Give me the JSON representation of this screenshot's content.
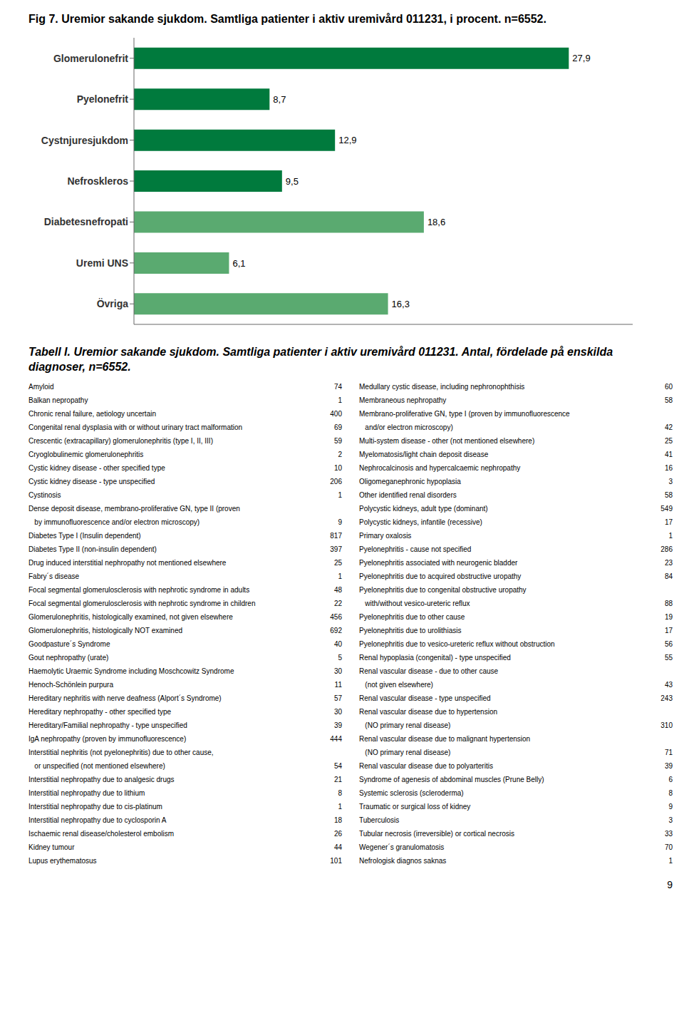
{
  "chart_data": {
    "type": "bar",
    "orientation": "horizontal",
    "title": "Fig 7. Uremior sakande sjukdom. Samtliga patienter i aktiv uremivård 011231, i procent. n=6552.",
    "categories": [
      "Glomerulonefrit",
      "Pyelonefrit",
      "Cystnjuresjukdom",
      "Nefroskleros",
      "Diabetesnefropati",
      "Uremi UNS",
      "Övriga"
    ],
    "values": [
      27.9,
      8.7,
      12.9,
      9.5,
      18.6,
      6.1,
      16.3
    ],
    "value_labels": [
      "27,9",
      "8,7",
      "12,9",
      "9,5",
      "18,6",
      "6,1",
      "16,3"
    ],
    "colors": [
      "#007a3d",
      "#007a3d",
      "#007a3d",
      "#007a3d",
      "#5aaa70",
      "#5aaa70",
      "#5aaa70"
    ],
    "data_labels": true,
    "xlim": [
      0,
      32
    ],
    "tick_labels": "y",
    "grid": false,
    "annotations": [
      "9"
    ],
    "table": {
      "title": "Tabell I. Uremior sakande sjukdom. Samtliga patienter i aktiv uremivård 011231. Antal, fördelade på enskilda diagnoser, n=6552.",
      "columns": [
        [
          {
            "label": "Amyloid",
            "value": 74
          },
          {
            "label": "Balkan nepropathy",
            "value": 1
          },
          {
            "label": "Chronic renal failure, aetiology uncertain",
            "value": 400
          },
          {
            "label": "Congenital renal dysplasia with or without urinary tract malformation",
            "value": 69
          },
          {
            "label": "Crescentic (extracapillary) glomerulonephritis (type I, II, III)",
            "value": 59
          },
          {
            "label": "Cryoglobulinemic glomerulonephritis",
            "value": 2
          },
          {
            "label": "Cystic kidney disease - other specified type",
            "value": 10
          },
          {
            "label": "Cystic kidney disease - type unspecified",
            "value": 206
          },
          {
            "label": "Cystinosis",
            "value": 1
          },
          {
            "label": "Dense deposit disease, membrano-proliferative GN, type II (proven"
          },
          {
            "label": "   by immunofluorescence and/or electron microscopy)",
            "value": 9
          },
          {
            "label": "Diabetes Type I (Insulin dependent)",
            "value": 817
          },
          {
            "label": "Diabetes Type II (non-insulin dependent)",
            "value": 397
          },
          {
            "label": "Drug induced interstitial nephropathy not mentioned elsewhere",
            "value": 25
          },
          {
            "label": "Fabry´s disease",
            "value": 1
          },
          {
            "label": "Focal segmental glomerulosclerosis with nephrotic syndrome in adults",
            "value": 48
          },
          {
            "label": "Focal segmental glomerulosclerosis with nephrotic syndrome in children",
            "value": 22
          },
          {
            "label": "Glomerulonephritis, histologically examined, not given elsewhere",
            "value": 456
          },
          {
            "label": "Glomerulonephritis, histologically NOT examined",
            "value": 692
          },
          {
            "label": "Goodpasture´s Syndrome",
            "value": 40
          },
          {
            "label": "Gout nephropathy (urate)",
            "value": 5
          },
          {
            "label": "Haemolytic Uraemic Syndrome including Moschcowitz Syndrome",
            "value": 30
          },
          {
            "label": "Henoch-Schönlein purpura",
            "value": 11
          },
          {
            "label": "Hereditary nephritis with nerve deafness (Alport´s Syndrome)",
            "value": 57
          },
          {
            "label": "Hereditary nephropathy - other specified type",
            "value": 30
          },
          {
            "label": "Hereditary/Familial nephropathy - type unspecified",
            "value": 39
          },
          {
            "label": "IgA nephropathy (proven by immunofluorescence)",
            "value": 444
          },
          {
            "label": "Interstitial nephritis (not pyelonephritis) due to other cause,"
          },
          {
            "label": "   or unspecified (not mentioned elsewhere)",
            "value": 54
          },
          {
            "label": "Interstitial nephropathy due to analgesic drugs",
            "value": 21
          },
          {
            "label": "Interstitial nephropathy due to lithium",
            "value": 8
          },
          {
            "label": "Interstitial nephropathy due to cis-platinum",
            "value": 1
          },
          {
            "label": "Interstitial nephropathy due to cyclosporin A",
            "value": 18
          },
          {
            "label": "Ischaemic renal disease/cholesterol embolism",
            "value": 26
          },
          {
            "label": "Kidney tumour",
            "value": 44
          },
          {
            "label": "Lupus erythematosus",
            "value": 101
          }
        ],
        [
          {
            "label": "Medullary cystic disease, including nephronophthisis",
            "value": 60
          },
          {
            "label": "Membraneous nephropathy",
            "value": 58
          },
          {
            "label": "Membrano-proliferative GN, type I (proven by immunofluorescence"
          },
          {
            "label": "   and/or electron microscopy)",
            "value": 42
          },
          {
            "label": "Multi-system disease - other (not mentioned elsewhere)",
            "value": 25
          },
          {
            "label": "Myelomatosis/light chain deposit disease",
            "value": 41
          },
          {
            "label": "Nephrocalcinosis and hypercalcaemic nephropathy",
            "value": 16
          },
          {
            "label": "Oligomeganephronic hypoplasia",
            "value": 3
          },
          {
            "label": "Other identified renal disorders",
            "value": 58
          },
          {
            "label": "Polycystic kidneys, adult type (dominant)",
            "value": 549
          },
          {
            "label": "Polycystic kidneys, infantile (recessive)",
            "value": 17
          },
          {
            "label": "Primary oxalosis",
            "value": 1
          },
          {
            "label": "Pyelonephritis - cause not specified",
            "value": 286
          },
          {
            "label": "Pyelonephritis associated with neurogenic bladder",
            "value": 23
          },
          {
            "label": "Pyelonephritis due to acquired obstructive uropathy",
            "value": 84
          },
          {
            "label": "Pyelonephritis due to congenital obstructive uropathy"
          },
          {
            "label": "   with/without vesico-ureteric reflux",
            "value": 88
          },
          {
            "label": "Pyelonephritis due to other cause",
            "value": 19
          },
          {
            "label": "Pyelonephritis due to urolithiasis",
            "value": 17
          },
          {
            "label": "Pyelonephritis due to vesico-ureteric reflux without obstruction",
            "value": 56
          },
          {
            "label": "Renal hypoplasia (congenital) - type unspecified",
            "value": 55
          },
          {
            "label": "Renal vascular disease - due to other cause"
          },
          {
            "label": "   (not given elsewhere)",
            "value": 43
          },
          {
            "label": "Renal vascular disease - type unspecified",
            "value": 243
          },
          {
            "label": "Renal vascular disease due to hypertension"
          },
          {
            "label": "   (NO primary renal disease)",
            "value": 310
          },
          {
            "label": "Renal vascular disease due to malignant hypertension"
          },
          {
            "label": "   (NO primary renal disease)",
            "value": 71
          },
          {
            "label": "Renal vascular disease due to polyarteritis",
            "value": 39
          },
          {
            "label": "Syndrome of agenesis of abdominal muscles (Prune Belly)",
            "value": 6
          },
          {
            "label": "Systemic sclerosis (scleroderma)",
            "value": 8
          },
          {
            "label": "Traumatic or surgical loss of kidney",
            "value": 9
          },
          {
            "label": "Tuberculosis",
            "value": 3
          },
          {
            "label": "Tubular necrosis (irreversible) or cortical necrosis",
            "value": 33
          },
          {
            "label": "Wegener´s granulomatosis",
            "value": 70
          },
          {
            "label": "Nefrologisk diagnos saknas",
            "value": 1
          }
        ]
      ]
    }
  }
}
